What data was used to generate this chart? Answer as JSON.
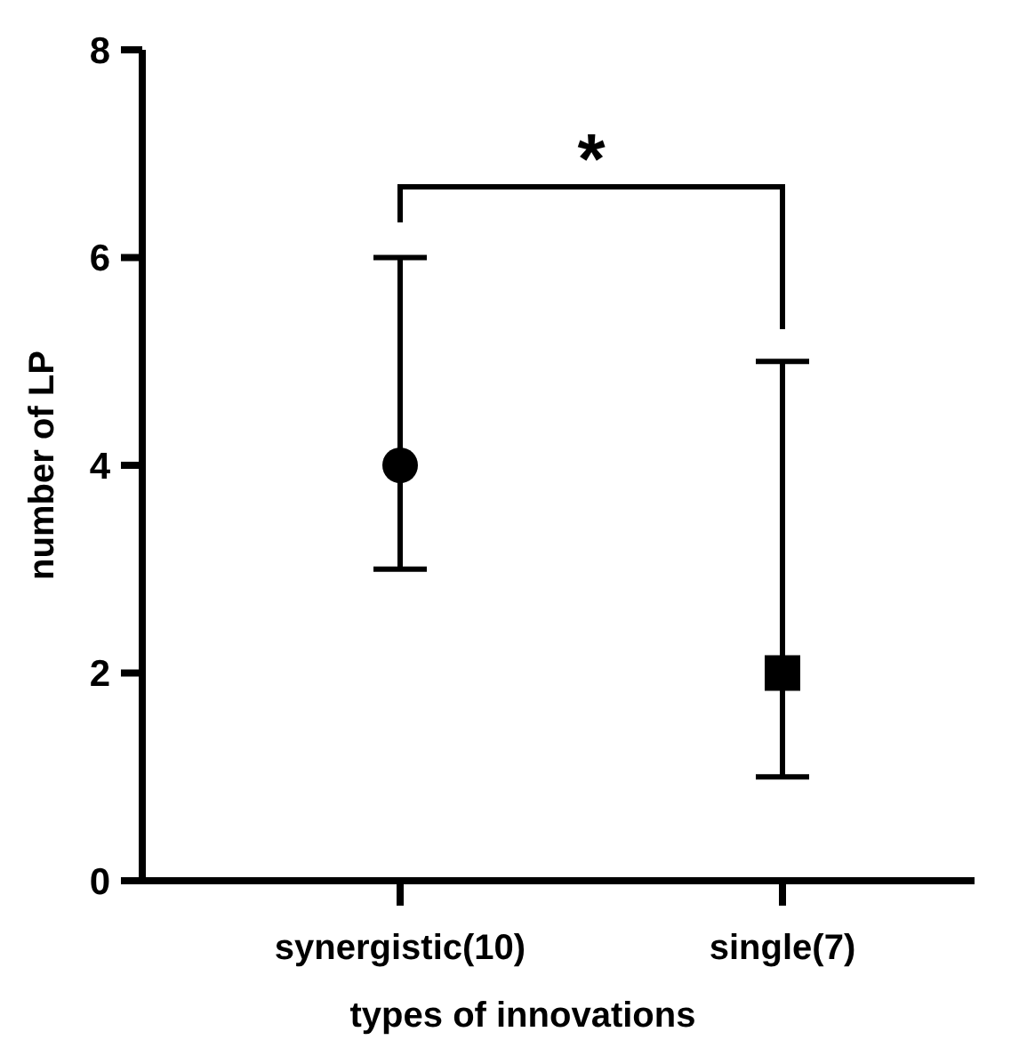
{
  "chart_data": {
    "type": "scatter",
    "xlabel": "types of innovations",
    "ylabel": "number of LP",
    "categories": [
      "synergistic(10)",
      "single(7)"
    ],
    "series": [
      {
        "color": "#000000",
        "marker": "circle",
        "values": [
          4,
          null
        ],
        "errors": [
          [
            3,
            6
          ],
          null
        ]
      },
      {
        "color": "#000000",
        "marker": "square",
        "values": [
          null,
          2
        ],
        "errors": [
          null,
          [
            1,
            5
          ]
        ]
      }
    ],
    "ylim": [
      0,
      8
    ],
    "yticks": [
      0,
      2,
      4,
      6,
      8
    ],
    "grid": false,
    "annotations": [
      "*"
    ]
  }
}
